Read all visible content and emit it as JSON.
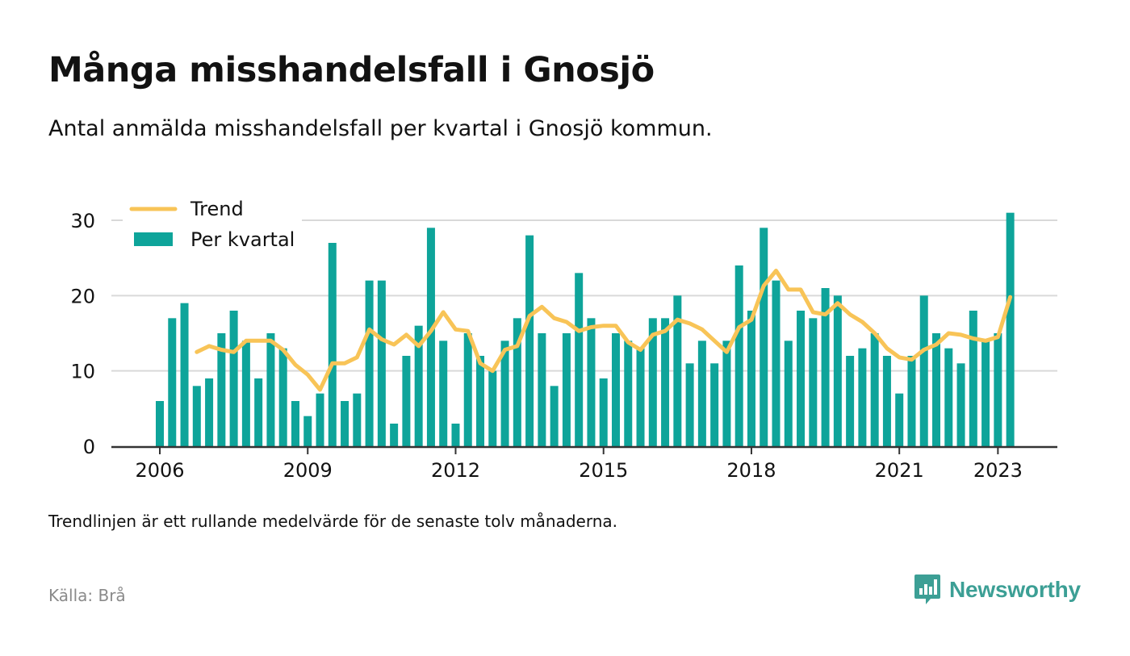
{
  "title": "Många misshandelsfall i Gnosjö",
  "subtitle": "Antal anmälda misshandelsfall per kvartal i Gnosjö kommun.",
  "note": "Trendlinjen är ett rullande medelvärde för de senaste tolv månaderna.",
  "source": "Källa: Brå",
  "brand": "Newsworthy",
  "colors": {
    "bar": "#0ea49a",
    "trend": "#f8c457",
    "grid": "#d9d9d9",
    "axis": "#333333",
    "brand": "#3c9f95"
  },
  "chart_data": {
    "type": "bar",
    "ylim": [
      0,
      30
    ],
    "yticks": [
      0,
      10,
      20,
      30
    ],
    "xtick_labels": [
      "2006",
      "2009",
      "2012",
      "2015",
      "2018",
      "2021",
      "2023"
    ],
    "legend_position": "top-left",
    "grid": true,
    "series": [
      {
        "name": "Per kvartal",
        "kind": "bar",
        "values": [
          6,
          17,
          19,
          8,
          9,
          15,
          18,
          14,
          9,
          15,
          13,
          6,
          4,
          7,
          27,
          6,
          7,
          22,
          22,
          3,
          12,
          16,
          29,
          14,
          3,
          15,
          12,
          10,
          14,
          17,
          28,
          15,
          8,
          15,
          23,
          17,
          9,
          15,
          14,
          13,
          17,
          17,
          20,
          11,
          14,
          11,
          14,
          24,
          18,
          29,
          22,
          14,
          18,
          17,
          21,
          20,
          12,
          13,
          15,
          12,
          7,
          12,
          20,
          15,
          13,
          11,
          18,
          14,
          15,
          31
        ]
      },
      {
        "name": "Trend",
        "kind": "line",
        "start_index": 3,
        "values": [
          12.5,
          13.3,
          12.8,
          12.5,
          14.0,
          14.0,
          14.0,
          12.8,
          10.8,
          9.5,
          7.5,
          11.0,
          11.0,
          11.8,
          15.5,
          14.2,
          13.5,
          14.8,
          13.3,
          15.3,
          17.8,
          15.5,
          15.3,
          11.0,
          10.0,
          12.8,
          13.3,
          17.3,
          18.5,
          17.0,
          16.5,
          15.3,
          15.8,
          16.0,
          16.0,
          13.8,
          12.8,
          14.8,
          15.3,
          16.8,
          16.3,
          15.5,
          14.0,
          12.5,
          15.8,
          16.8,
          21.3,
          23.3,
          20.8,
          20.8,
          17.8,
          17.5,
          19.0,
          17.5,
          16.5,
          15.0,
          13.0,
          11.8,
          11.5,
          12.8,
          13.5,
          15.0,
          14.8,
          14.3,
          14.0,
          14.5,
          19.8
        ]
      }
    ]
  }
}
